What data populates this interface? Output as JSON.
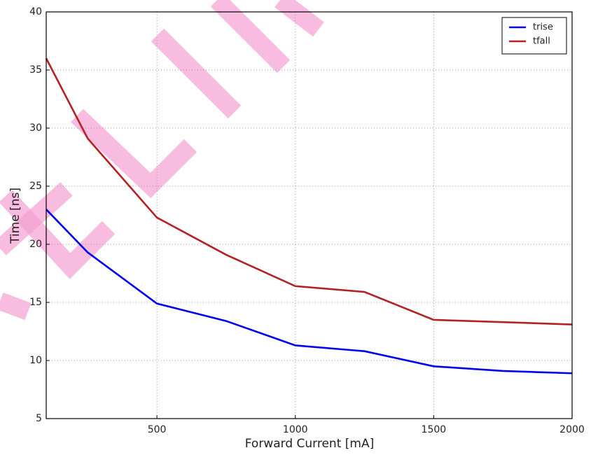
{
  "chart_data": {
    "type": "line",
    "x_label": "Forward Current [mA]",
    "y_label": "Time [ns]",
    "x": [
      100,
      250,
      500,
      750,
      1000,
      1250,
      1500,
      1750,
      2000
    ],
    "series": [
      {
        "name": "trise",
        "color": "#0000ee",
        "values": [
          23,
          19.3,
          14.9,
          13.4,
          11.3,
          10.8,
          9.5,
          9.1,
          8.9
        ]
      },
      {
        "name": "tfall",
        "color": "#b22222",
        "values": [
          36,
          29.1,
          22.3,
          19.1,
          16.4,
          15.9,
          13.5,
          13.3,
          13.1
        ]
      }
    ],
    "xlim": [
      100,
      2000
    ],
    "xticks": [
      500,
      1000,
      1500,
      2000
    ],
    "ylim": [
      5,
      40
    ],
    "yticks": [
      5,
      10,
      15,
      20,
      25,
      30,
      35,
      40
    ],
    "grid": true,
    "legend": "upper right"
  }
}
